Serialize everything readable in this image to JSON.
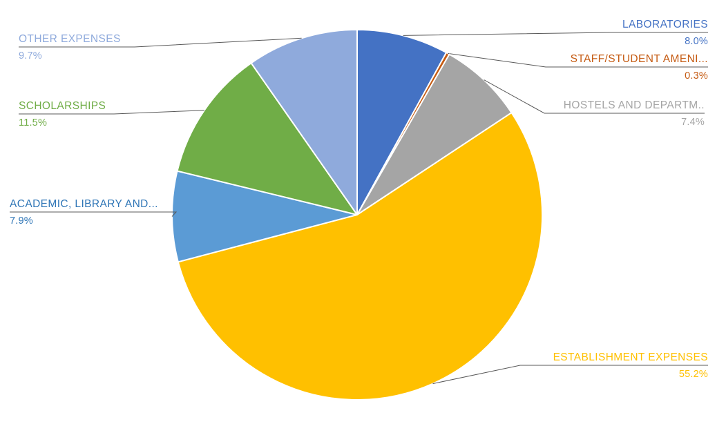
{
  "chart_data": {
    "type": "pie",
    "title": "",
    "unit": "%",
    "start_angle_deg": 0,
    "direction": "clockwise",
    "legend": "none",
    "labels_style": "outside-callout-with-leader-lines",
    "leader_line_color": "#595959",
    "slice_border_color": "#ffffff",
    "background_color": "#ffffff",
    "slices": [
      {
        "label": "LABORATORIES",
        "value": 8.0,
        "percent": "8.0%",
        "color": "#4472C4"
      },
      {
        "label": "STAFF/STUDENT AMENI...",
        "value": 0.3,
        "percent": "0.3%",
        "color": "#C55A11"
      },
      {
        "label": "HOSTELS AND DEPARTM..",
        "value": 7.4,
        "percent": "7.4%",
        "color": "#A5A5A5"
      },
      {
        "label": "ESTABLISHMENT EXPENSES",
        "value": 55.2,
        "percent": "55.2%",
        "color": "#FFC000"
      },
      {
        "label": "ACADEMIC, LIBRARY AND...",
        "value": 7.9,
        "percent": "7.9%",
        "color": "#5B9BD5",
        "label_color": "#2E75B6"
      },
      {
        "label": "SCHOLARSHIPS",
        "value": 11.5,
        "percent": "11.5%",
        "color": "#70AD47"
      },
      {
        "label": "OTHER EXPENSES",
        "value": 9.7,
        "percent": "9.7%",
        "color": "#8FAADC"
      }
    ]
  }
}
